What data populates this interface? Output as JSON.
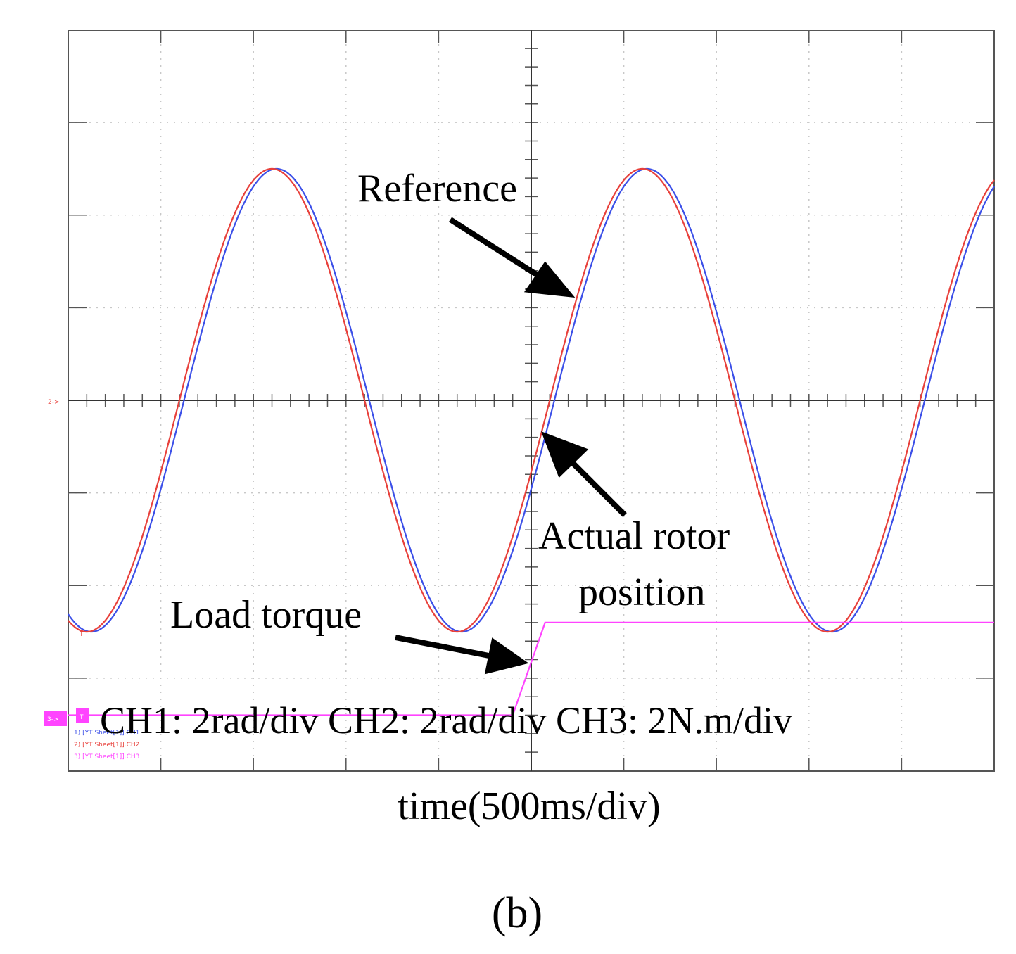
{
  "panel_label": "(b)",
  "chart_data": {
    "type": "line",
    "xlabel": "time(500ms/div)",
    "x_units": "div",
    "y_units": "div",
    "xlim": [
      -5,
      5
    ],
    "ylim": [
      -4,
      4
    ],
    "grid": true,
    "scale_note": "CH1: 2rad/div CH2: 2rad/div CH3: 2N.m/div",
    "annotations": {
      "reference": "Reference",
      "actual_line1": "Actual rotor",
      "actual_line2": "position",
      "load": "Load torque"
    },
    "series": [
      {
        "channel": "CH1",
        "color": "#3b4fe8",
        "wave": {
          "amplitude": 2.5,
          "offset": 0,
          "period_div": 4.0,
          "trough_at_div": -4.8,
          "lag_div": 0.05
        },
        "x_range": [
          -5,
          5
        ]
      },
      {
        "channel": "CH2",
        "color": "#e8403b",
        "wave": {
          "amplitude": 2.5,
          "offset": 0,
          "period_div": 4.0,
          "trough_at_div": -4.8,
          "lag_div": 0.0
        },
        "x_range": [
          -5,
          5
        ]
      },
      {
        "channel": "CH3",
        "color": "#ff44ff",
        "x": [
          -5,
          -0.2,
          0.15,
          5
        ],
        "y": [
          -3.4,
          -3.4,
          -2.4,
          -2.4
        ]
      }
    ],
    "channel_markers": {
      "ch2_marker": "2->",
      "ch3_marker": "3->",
      "trigger_marker": "T"
    },
    "legend_tiny": [
      "1) [YT Sheet[1]].CH1",
      "2) [YT Sheet[1]].CH2",
      "3) [YT Sheet[1]].CH3"
    ]
  }
}
